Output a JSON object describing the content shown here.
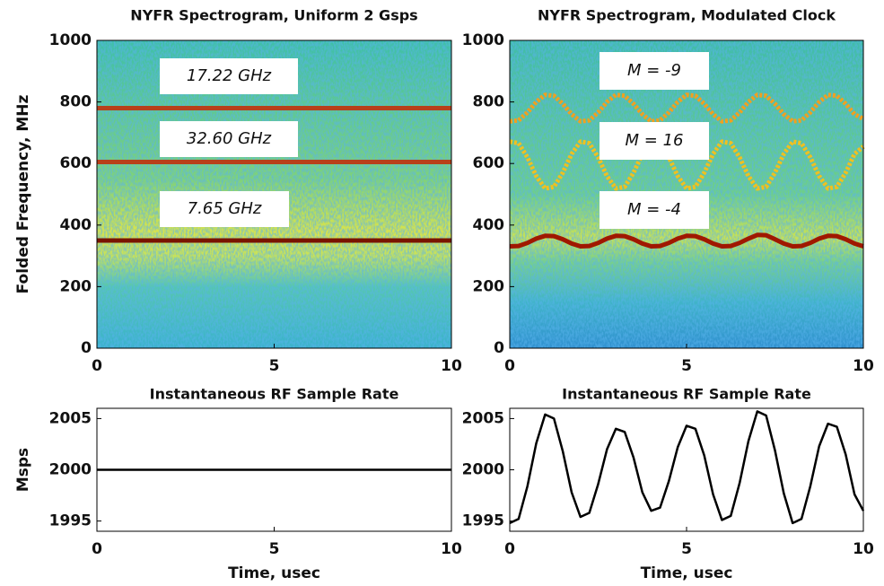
{
  "chart_data": [
    {
      "type": "spectrogram",
      "title": "NYFR Spectrogram, Uniform 2 Gsps",
      "y_label": "Folded Frequency, MHz",
      "x": [
        0,
        10
      ],
      "series": [
        {
          "color": "#b8401a",
          "values": [
            780,
            780
          ]
        },
        {
          "color": "#b8401a",
          "values": [
            605,
            605
          ]
        },
        {
          "color": "#7a1400",
          "values": [
            350,
            350
          ]
        }
      ],
      "annotations": [
        "17.22 GHz",
        "32.60 GHz",
        "7.65 GHz"
      ],
      "xlim": [
        0,
        10
      ],
      "xticks": [
        0,
        5,
        10
      ],
      "ylim": [
        0,
        1000
      ],
      "yticks": [
        0,
        200,
        400,
        600,
        800,
        1000
      ]
    },
    {
      "type": "spectrogram",
      "title": "NYFR Spectrogram, Modulated Clock",
      "x": [
        0,
        0.25,
        0.5,
        0.75,
        1,
        1.25,
        1.5,
        1.75,
        2,
        2.25,
        2.5,
        2.75,
        3,
        3.25,
        3.5,
        3.75,
        4,
        4.25,
        4.5,
        4.75,
        5,
        5.25,
        5.5,
        5.75,
        6,
        6.25,
        6.5,
        6.75,
        7,
        7.25,
        7.5,
        7.75,
        8,
        8.25,
        8.5,
        8.75,
        9,
        9.25,
        9.5,
        9.75,
        10
      ],
      "series": [
        {
          "color": "#f0a020",
          "values": [
            737,
            740,
            766,
            800,
            823,
            820,
            794,
            760,
            737,
            740,
            766,
            800,
            823,
            820,
            794,
            760,
            737,
            740,
            766,
            800,
            823,
            820,
            794,
            760,
            737,
            740,
            766,
            800,
            823,
            820,
            794,
            760,
            737,
            740,
            766,
            800,
            823,
            820,
            794,
            760,
            745
          ]
        },
        {
          "color": "#f0c020",
          "values": [
            671,
            666,
            620,
            559,
            519,
            524,
            570,
            631,
            671,
            666,
            620,
            559,
            519,
            524,
            570,
            631,
            671,
            666,
            620,
            559,
            519,
            524,
            570,
            631,
            671,
            666,
            620,
            559,
            519,
            524,
            570,
            631,
            671,
            666,
            620,
            559,
            519,
            524,
            570,
            631,
            655
          ]
        },
        {
          "color": "#a01800",
          "values": [
            331,
            332,
            342,
            356,
            365,
            364,
            354,
            340,
            331,
            332,
            342,
            356,
            365,
            364,
            354,
            340,
            331,
            332,
            342,
            356,
            365,
            364,
            354,
            340,
            331,
            332,
            342,
            356,
            368,
            367,
            354,
            340,
            331,
            332,
            342,
            356,
            365,
            364,
            354,
            340,
            331
          ]
        }
      ],
      "annotations": [
        "M = -9",
        "M = 16",
        "M = -4"
      ],
      "xlim": [
        0,
        10
      ],
      "xticks": [
        0,
        5,
        10
      ],
      "ylim": [
        0,
        1000
      ],
      "yticks": [
        0,
        200,
        400,
        600,
        800,
        1000
      ]
    },
    {
      "type": "line",
      "title": "Instantaneous RF Sample Rate",
      "y_label": "Msps",
      "x_label": "Time, usec",
      "x": [
        0,
        10
      ],
      "series": [
        {
          "color": "#000000",
          "values": [
            2000,
            2000
          ]
        }
      ],
      "xlim": [
        0,
        10
      ],
      "xticks": [
        0,
        5,
        10
      ],
      "ylim": [
        1994,
        2006
      ],
      "yticks": [
        1995,
        2000,
        2005
      ]
    },
    {
      "type": "line",
      "title": "Instantaneous RF Sample Rate",
      "x_label": "Time, usec",
      "x": [
        0,
        0.25,
        0.5,
        0.75,
        1,
        1.25,
        1.5,
        1.75,
        2,
        2.25,
        2.5,
        2.75,
        3,
        3.25,
        3.5,
        3.75,
        4,
        4.25,
        4.5,
        4.75,
        5,
        5.25,
        5.5,
        5.75,
        6,
        6.25,
        6.5,
        6.75,
        7,
        7.25,
        7.5,
        7.75,
        8,
        8.25,
        8.5,
        8.75,
        9,
        9.25,
        9.5,
        9.75,
        10
      ],
      "series": [
        {
          "color": "#000000",
          "values": [
            1994.8,
            1995.2,
            1998.4,
            2002.6,
            2005.4,
            2005.0,
            2001.8,
            1997.8,
            1995.4,
            1995.8,
            1998.6,
            2002.0,
            2004.0,
            2003.7,
            2001.2,
            1997.8,
            1996.0,
            1996.3,
            1998.9,
            2002.2,
            2004.3,
            2004.0,
            2001.4,
            1997.6,
            1995.1,
            1995.5,
            1998.7,
            2002.8,
            2005.7,
            2005.3,
            2001.9,
            1997.7,
            1994.8,
            1995.2,
            1998.4,
            2002.3,
            2004.5,
            2004.2,
            2001.5,
            1997.6,
            1996.0
          ]
        }
      ],
      "xlim": [
        0,
        10
      ],
      "xticks": [
        0,
        5,
        10
      ],
      "ylim": [
        1994,
        2006
      ],
      "yticks": [
        1995,
        2000,
        2005
      ]
    }
  ]
}
